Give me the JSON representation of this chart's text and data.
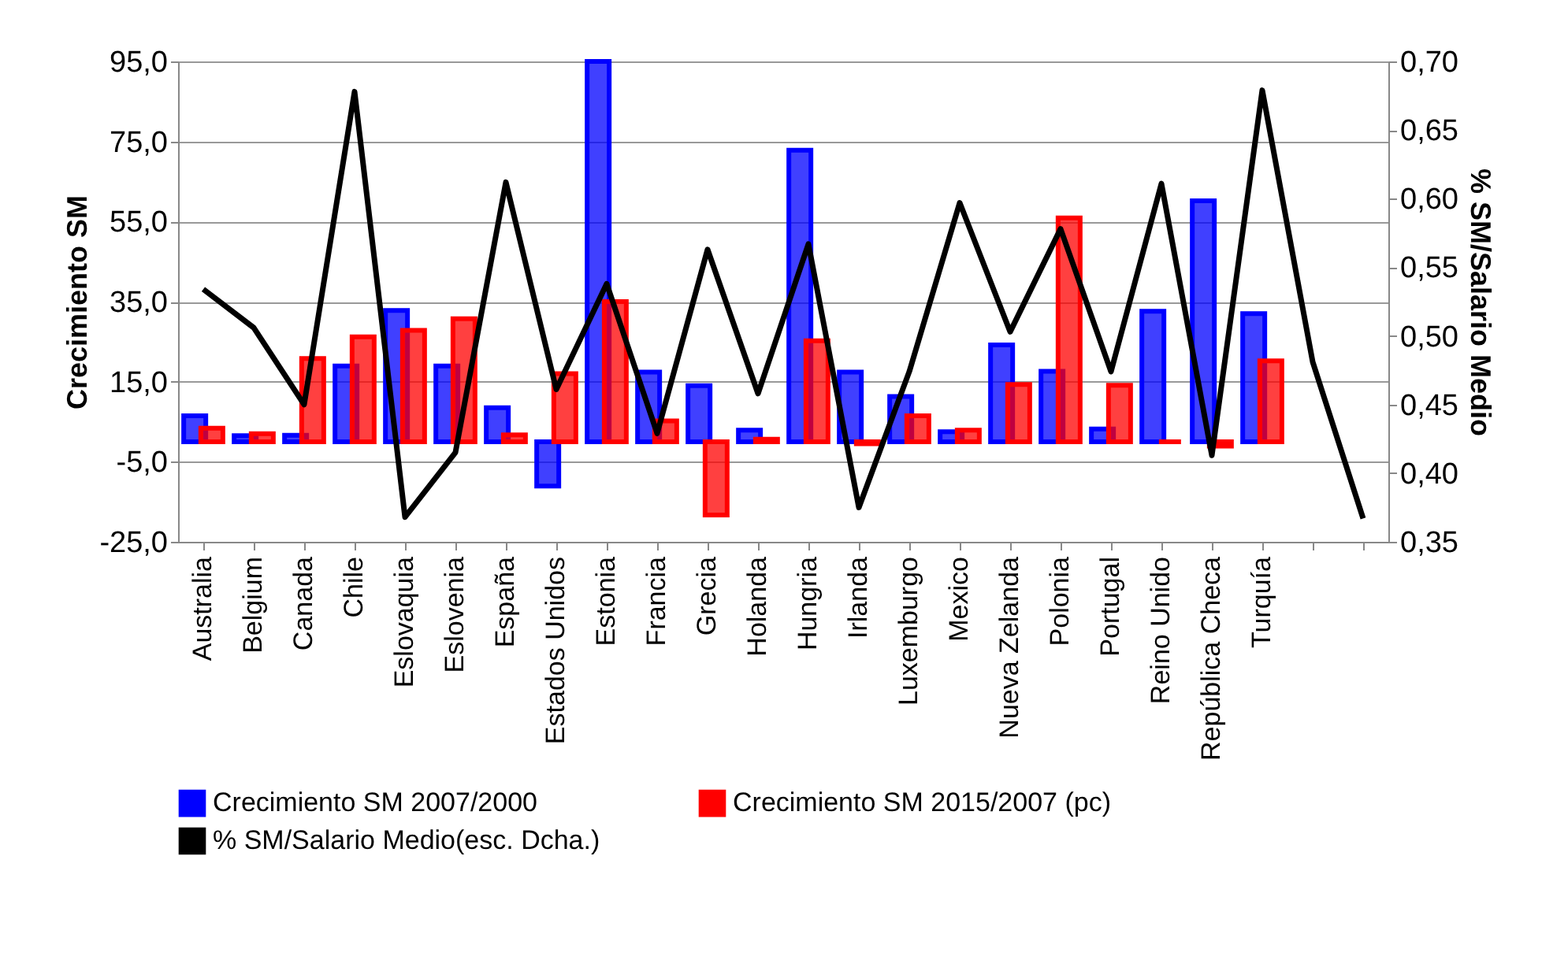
{
  "chart_data": {
    "type": "bar",
    "categories": [
      "Australia",
      "Belgium",
      "Canada",
      "Chile",
      "Eslovaquia",
      "Eslovenia",
      "España",
      "Estados Unidos",
      "Estonia",
      "Francia",
      "Grecia",
      "Holanda",
      "Hungria",
      "Irlanda",
      "Luxemburgo",
      "Mexico",
      "Nueva Zelanda",
      "Polonia",
      "Portugal",
      "Reino Unido",
      "República Checa",
      "Turquía",
      null,
      null
    ],
    "series": [
      {
        "name": "Crecimiento SM 2007/2000",
        "color": "#0000ff",
        "values": [
          6.5,
          1.5,
          1.6,
          18.9,
          32.8,
          18.9,
          8.5,
          -11.1,
          95.0,
          17.4,
          14.0,
          2.9,
          72.8,
          17.4,
          11.3,
          2.5,
          24.2,
          17.6,
          3.2,
          32.6,
          60.2,
          32.0,
          null,
          null
        ]
      },
      {
        "name": "Crecimiento SM 2015/2007 (pc)",
        "color": "#ff0000",
        "values": [
          3.4,
          2.0,
          20.8,
          26.2,
          27.8,
          30.7,
          1.7,
          17.0,
          35.0,
          5.2,
          -18.3,
          0.6,
          25.2,
          -0.5,
          6.5,
          2.9,
          14.3,
          55.9,
          14.1,
          0.0,
          -1.1,
          20.2,
          null,
          null
        ]
      },
      {
        "name": "% SM/Salario Medio(esc. Dcha.)",
        "type": "line",
        "axis": "y2",
        "color": "#000000",
        "values": [
          0.534,
          0.506,
          0.45,
          0.678,
          0.368,
          0.415,
          0.612,
          0.461,
          0.538,
          0.429,
          0.563,
          0.458,
          0.567,
          0.375,
          0.474,
          0.597,
          0.503,
          0.578,
          0.474,
          0.611,
          0.413,
          0.679,
          0.481,
          0.367
        ]
      }
    ],
    "ylabel": "Crecimiento SM",
    "y2label": "% SM/Salario Medio",
    "ylim": [
      -25,
      95
    ],
    "yticks": [
      {
        "value": -25,
        "label": "-25,0"
      },
      {
        "value": -5,
        "label": "-5,0"
      },
      {
        "value": 15,
        "label": "15,0"
      },
      {
        "value": 35,
        "label": "35,0"
      },
      {
        "value": 55,
        "label": "55,0"
      },
      {
        "value": 75,
        "label": "75,0"
      },
      {
        "value": 95,
        "label": "95,0"
      }
    ],
    "y2lim": [
      0.35,
      0.7
    ],
    "y2ticks": [
      {
        "value": 0.35,
        "label": "0,35"
      },
      {
        "value": 0.4,
        "label": "0,40"
      },
      {
        "value": 0.45,
        "label": "0,45"
      },
      {
        "value": 0.5,
        "label": "0,50"
      },
      {
        "value": 0.55,
        "label": "0,55"
      },
      {
        "value": 0.6,
        "label": "0,60"
      },
      {
        "value": 0.65,
        "label": "0,65"
      },
      {
        "value": 0.7,
        "label": "0,70"
      }
    ],
    "grid": "y",
    "legend": "bottom",
    "marker": "none",
    "line_style": "solid"
  }
}
